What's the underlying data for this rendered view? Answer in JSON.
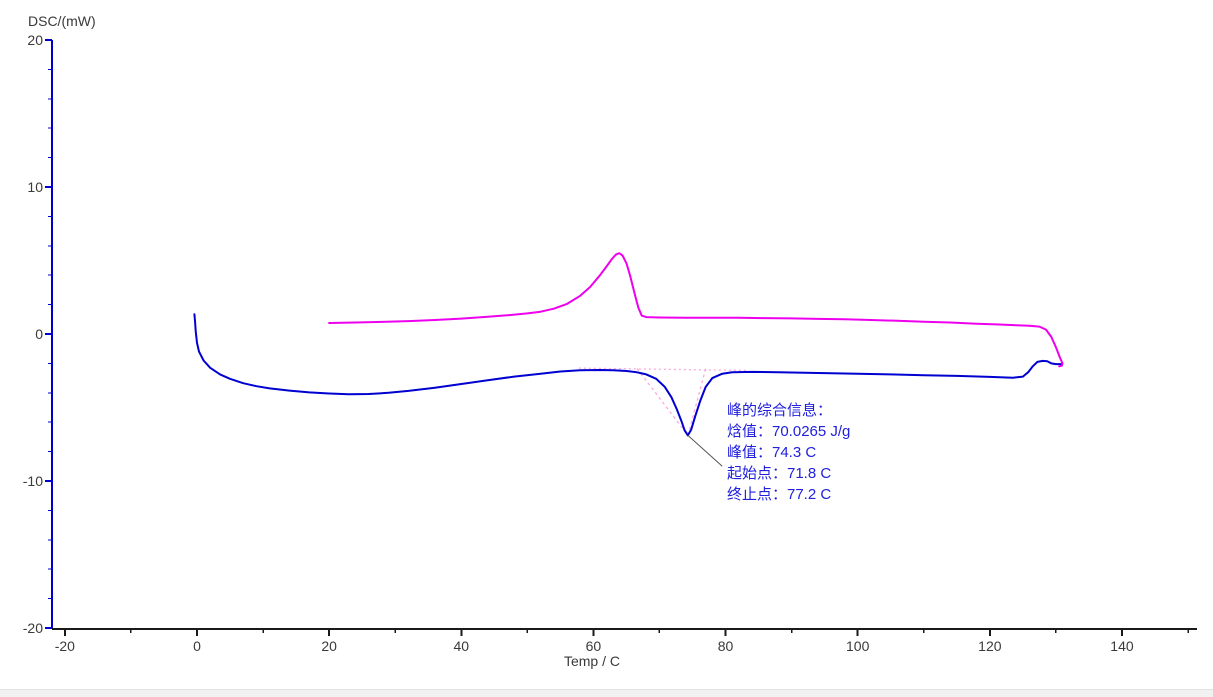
{
  "window": {
    "background": "#ffffff",
    "bottom_bar": {
      "color": "#f1f1f1",
      "border_color": "#e2e2e2"
    }
  },
  "chart_data": {
    "type": "line",
    "title": "",
    "xlabel": "Temp / C",
    "ylabel": "DSC/(mW)",
    "xlim": [
      -22,
      152
    ],
    "ylim": [
      -20,
      20
    ],
    "grid": false,
    "legend": "none",
    "tick_label_color": "#3a3a3a",
    "x_axis": {
      "color": "#1a1a1a",
      "major_ticks": [
        -20,
        0,
        20,
        40,
        60,
        80,
        100,
        120,
        140
      ],
      "minor_tick_step": 10,
      "minor_tick_range": [
        -10,
        150
      ]
    },
    "y_axis": {
      "color": "#0000cd",
      "major_ticks": [
        20,
        10,
        0,
        -10,
        -20
      ],
      "minor_tick_step": 2
    },
    "series": [
      {
        "name": "dsc-heating-curve",
        "color": "#0000d0",
        "x": [
          -0.4,
          -0.3,
          -0.2,
          0,
          0.3,
          1,
          2,
          3.5,
          5,
          7,
          9,
          11,
          14,
          17,
          20,
          23,
          26,
          29,
          32,
          36,
          40,
          44,
          48,
          52,
          55,
          58,
          61,
          63,
          65,
          66.5,
          68,
          69.5,
          70.8,
          71.8,
          72.6,
          73.3,
          73.8,
          74.3,
          74.8,
          75.4,
          76.2,
          77,
          78,
          79.5,
          81,
          84,
          88,
          92,
          96,
          100,
          105,
          110,
          115,
          120,
          123.5,
          125,
          125.8,
          126.5,
          127.2,
          128,
          128.7,
          129.3,
          130,
          130.9
        ],
        "y": [
          1.35,
          0.9,
          0.2,
          -0.6,
          -1.2,
          -1.8,
          -2.3,
          -2.75,
          -3.05,
          -3.35,
          -3.55,
          -3.7,
          -3.85,
          -3.97,
          -4.05,
          -4.1,
          -4.08,
          -4,
          -3.87,
          -3.65,
          -3.4,
          -3.15,
          -2.9,
          -2.7,
          -2.55,
          -2.47,
          -2.45,
          -2.47,
          -2.52,
          -2.6,
          -2.75,
          -3.05,
          -3.6,
          -4.3,
          -5.1,
          -5.9,
          -6.55,
          -6.9,
          -6.5,
          -5.6,
          -4.5,
          -3.6,
          -3,
          -2.7,
          -2.6,
          -2.58,
          -2.6,
          -2.63,
          -2.67,
          -2.7,
          -2.75,
          -2.8,
          -2.85,
          -2.92,
          -2.97,
          -2.9,
          -2.6,
          -2.2,
          -1.9,
          -1.83,
          -1.85,
          -2,
          -2.05,
          -2.05
        ]
      },
      {
        "name": "dsc-cooling-curve",
        "color": "#ee00ee",
        "x": [
          20,
          24,
          28,
          32,
          36,
          40,
          44,
          47,
          50,
          52,
          54,
          56,
          58,
          59.5,
          61,
          62,
          62.8,
          63.4,
          63.9,
          64.4,
          65,
          65.6,
          66.2,
          66.8,
          67.3,
          68,
          70,
          74,
          78,
          82,
          86,
          90,
          94,
          98,
          102,
          106,
          110,
          114,
          118,
          121,
          124,
          126,
          127.5,
          128.5,
          129.3,
          130,
          130.6,
          131,
          130.9,
          130.5
        ],
        "y": [
          0.75,
          0.78,
          0.82,
          0.88,
          0.95,
          1.05,
          1.17,
          1.27,
          1.4,
          1.52,
          1.72,
          2.05,
          2.6,
          3.2,
          4,
          4.6,
          5.1,
          5.4,
          5.5,
          5.35,
          4.8,
          3.9,
          2.8,
          1.8,
          1.25,
          1.15,
          1.12,
          1.1,
          1.1,
          1.1,
          1.08,
          1.06,
          1.03,
          1,
          0.95,
          0.9,
          0.84,
          0.78,
          0.7,
          0.65,
          0.6,
          0.56,
          0.5,
          0.3,
          -0.2,
          -0.9,
          -1.6,
          -2,
          -2.15,
          -2.2
        ]
      }
    ],
    "peak_analysis": {
      "construction_color": "#ffaadd",
      "baseline": {
        "x1": 57.8,
        "y1": -2.32,
        "x2": 83.3,
        "y2": -2.48
      },
      "tangents": [
        {
          "x1": 66.6,
          "y1": -2.35,
          "x2": 74.3,
          "y2": -6.9
        },
        {
          "x1": 74.3,
          "y1": -6.9,
          "x2": 77.0,
          "y2": -2.36
        }
      ],
      "leader_line": {
        "x1": 74.3,
        "y1": -6.9,
        "x2": 79.5,
        "y2": -9.0,
        "color": "#555555"
      }
    },
    "annotation": {
      "text_color": "#2020dd",
      "title": "峰的综合信息：",
      "lines": [
        "焓值：70.0265 J/g",
        "峰值：74.3 C",
        "起始点：71.8 C",
        "终止点：77.2 C"
      ],
      "values": {
        "enthalpy": "70.0265 J/g",
        "peak": "74.3 C",
        "onset": "71.8 C",
        "end": "77.2 C"
      }
    }
  }
}
